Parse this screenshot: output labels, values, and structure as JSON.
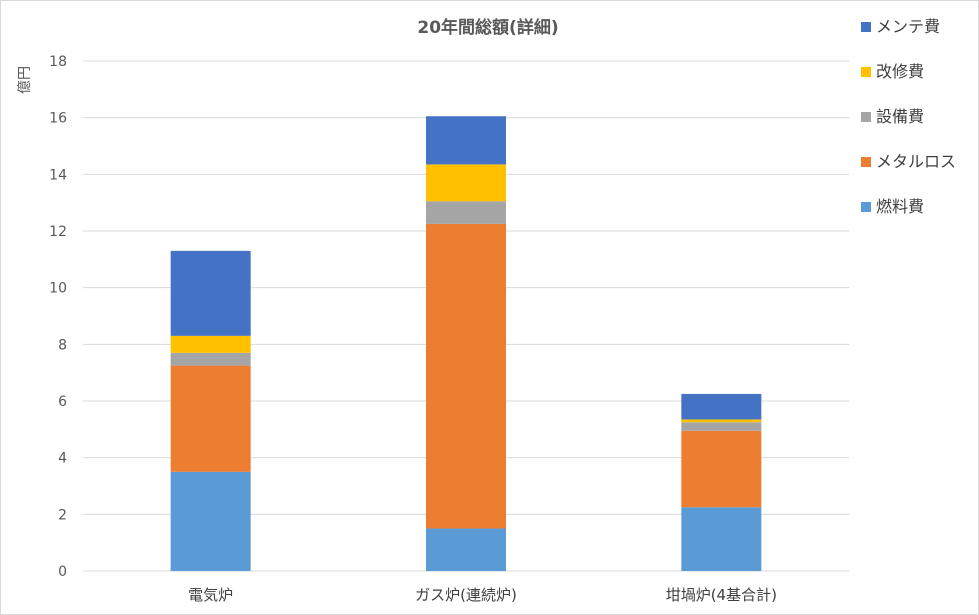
{
  "chart_data": {
    "type": "bar",
    "stacked": true,
    "title": "20年間総額(詳細)",
    "ylabel": "億円",
    "xlabel": "",
    "ylim": [
      0,
      18
    ],
    "yticks": [
      0,
      2,
      4,
      6,
      8,
      10,
      12,
      14,
      16,
      18
    ],
    "grid": true,
    "legend_position": "right",
    "categories": [
      "電気炉",
      "ガス炉(連続炉)",
      "坩堝炉(4基合計)"
    ],
    "series": [
      {
        "name": "燃料費",
        "color": "#5b9bd5",
        "values": [
          3.5,
          1.5,
          2.25
        ]
      },
      {
        "name": "メタルロス",
        "color": "#ed7d31",
        "values": [
          3.75,
          10.75,
          2.7
        ]
      },
      {
        "name": "設備費",
        "color": "#a5a5a5",
        "values": [
          0.45,
          0.8,
          0.3
        ]
      },
      {
        "name": "改修費",
        "color": "#ffc000",
        "values": [
          0.6,
          1.3,
          0.1
        ]
      },
      {
        "name": "メンテ費",
        "color": "#4472c4",
        "values": [
          3.0,
          1.7,
          0.9
        ]
      }
    ],
    "legend_order": [
      "メンテ費",
      "改修費",
      "設備費",
      "メタルロス",
      "燃料費"
    ]
  }
}
